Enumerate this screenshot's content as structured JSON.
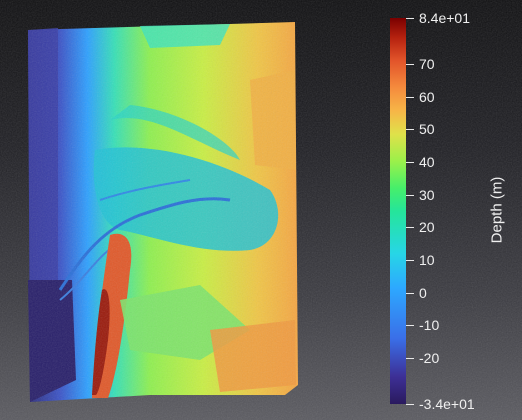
{
  "viewport": {
    "map_name": "bathymetry-surface"
  },
  "colorbar": {
    "title": "Depth (m)",
    "max_label": "8.4e+01",
    "min_label": "-3.4e+01",
    "range": [
      -34,
      84
    ],
    "ticks": [
      {
        "value": 84,
        "label": "8.4e+01"
      },
      {
        "value": 70,
        "label": "70"
      },
      {
        "value": 60,
        "label": "60"
      },
      {
        "value": 50,
        "label": "50"
      },
      {
        "value": 40,
        "label": "40"
      },
      {
        "value": 30,
        "label": "30"
      },
      {
        "value": 20,
        "label": "20"
      },
      {
        "value": 10,
        "label": "10"
      },
      {
        "value": 0,
        "label": "0"
      },
      {
        "value": -10,
        "label": "-10"
      },
      {
        "value": -20,
        "label": "-20"
      },
      {
        "value": -34,
        "label": "-3.4e+01"
      }
    ],
    "colors": {
      "min": "#2a1a5e",
      "low": "#3a6fe8",
      "mid_low": "#27d6e6",
      "mid": "#47ef6a",
      "mid_high": "#e0e14a",
      "high": "#f58b3d",
      "max": "#7a0000"
    }
  }
}
